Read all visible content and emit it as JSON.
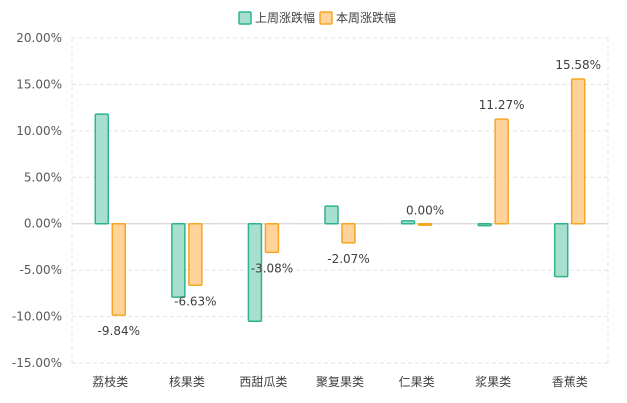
{
  "chart_data": {
    "type": "bar",
    "categories": [
      "荔枝类",
      "核果类",
      "西甜瓜类",
      "聚复果类",
      "仁果类",
      "浆果类",
      "香蕉类"
    ],
    "series": [
      {
        "name": "上周涨跌幅",
        "values": [
          11.8,
          -7.9,
          -10.5,
          1.9,
          0.3,
          -0.2,
          -5.7
        ],
        "fill": "#a8e0d0",
        "stroke": "#2db48e"
      },
      {
        "name": "本周涨跌幅",
        "values": [
          -9.84,
          -6.63,
          -3.08,
          -2.07,
          0.0,
          11.27,
          15.58
        ],
        "fill": "#ffd39a",
        "stroke": "#f5a623"
      }
    ],
    "data_labels": [
      "-9.84%",
      "-6.63%",
      "-3.08%",
      "-2.07%",
      "0.00%",
      "11.27%",
      "15.58%"
    ],
    "y_ticks": [
      "20.00%",
      "15.00%",
      "10.00%",
      "5.00%",
      "0.00%",
      "-5.00%",
      "-10.00%",
      "-15.00%"
    ],
    "ylim": [
      -15,
      20
    ],
    "grid": true,
    "legend_position": "top-center"
  }
}
